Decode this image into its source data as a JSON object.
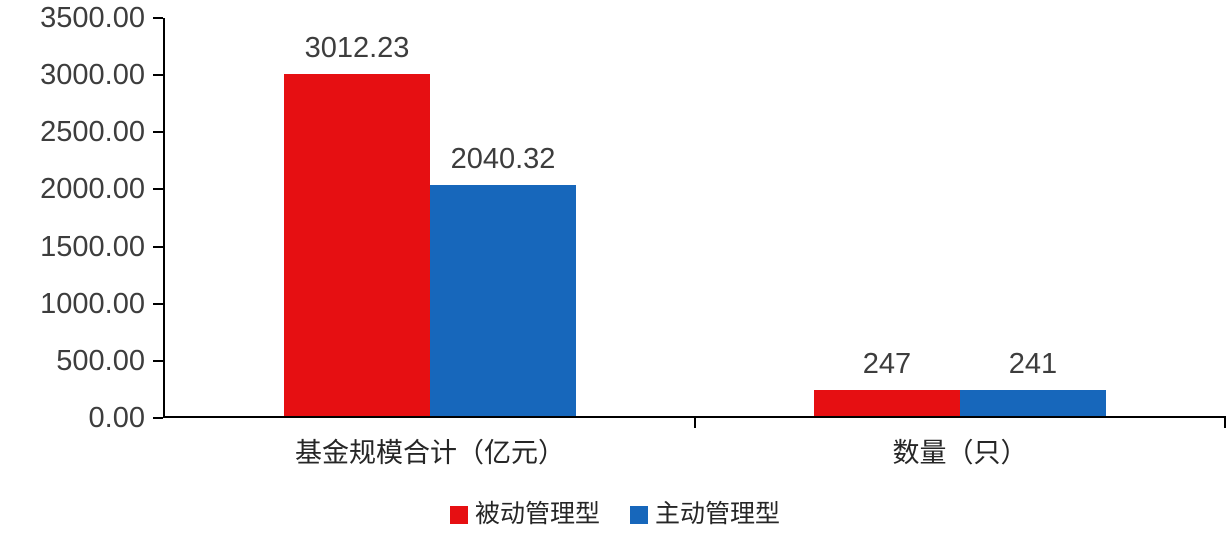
{
  "chart_data": {
    "type": "bar",
    "title": "",
    "xlabel": "",
    "ylabel": "",
    "categories": [
      "基金规模合计（亿元）",
      "数量（只）"
    ],
    "series": [
      {
        "name": "被动管理型",
        "color": "#e60f12",
        "values": [
          3012.23,
          247
        ]
      },
      {
        "name": "主动管理型",
        "color": "#1767bb",
        "values": [
          2040.32,
          241
        ]
      }
    ],
    "value_labels": [
      [
        "3012.23",
        "2040.32"
      ],
      [
        "247",
        "241"
      ]
    ],
    "ylim": [
      0,
      3500
    ],
    "ytick_step": 500,
    "ytick_labels": [
      "0.00",
      "500.00",
      "1000.00",
      "1500.00",
      "2000.00",
      "2500.00",
      "3000.00",
      "3500.00"
    ],
    "grid": false,
    "legend_position": "bottom",
    "axis_color": "#000000"
  }
}
